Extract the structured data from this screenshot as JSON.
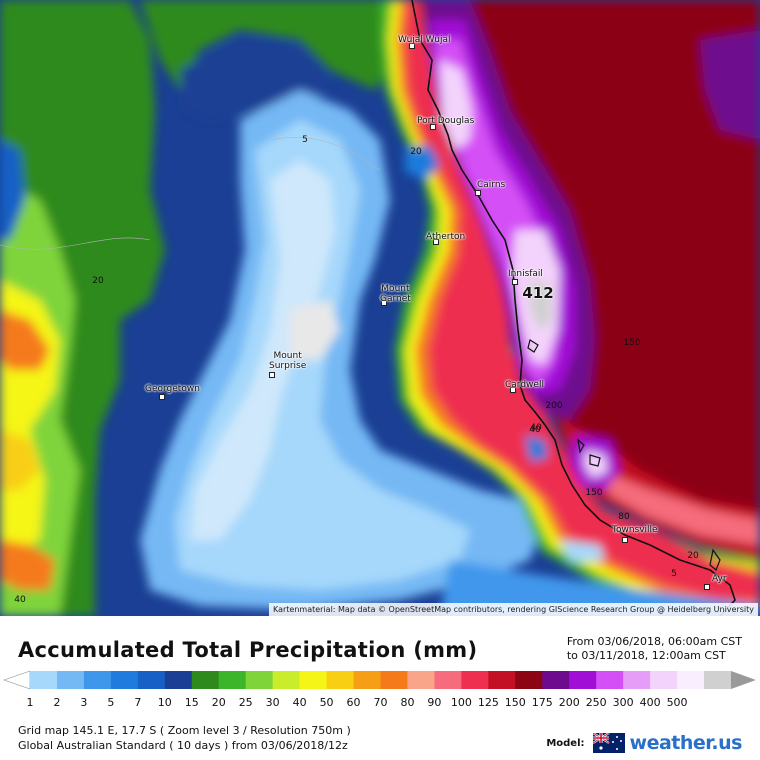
{
  "map": {
    "attribution": "Kartenmaterial: Map data © OpenStreetMap contributors, rendering GIScience Research Group @ Heidelberg University",
    "max_value": "412",
    "places": [
      {
        "name": "Wujal Wujal",
        "label_lines": [
          "Wujal Wujal"
        ]
      },
      {
        "name": "Port Douglas",
        "label_lines": [
          "Port Douglas"
        ]
      },
      {
        "name": "Cairns",
        "label_lines": [
          "Cairns"
        ]
      },
      {
        "name": "Atherton",
        "label_lines": [
          "Atherton"
        ]
      },
      {
        "name": "Innisfail",
        "label_lines": [
          "Innisfail"
        ]
      },
      {
        "name": "Mount Garnet",
        "label_lines": [
          "Mount",
          "Garnet"
        ]
      },
      {
        "name": "Mount Surprise",
        "label_lines": [
          "Mount",
          "Surprise"
        ]
      },
      {
        "name": "Georgetown",
        "label_lines": [
          "Georgetown"
        ]
      },
      {
        "name": "Cardwell",
        "label_lines": [
          "Cardwell"
        ]
      },
      {
        "name": "Townsville",
        "label_lines": [
          "Townsville"
        ]
      },
      {
        "name": "Ayr",
        "label_lines": [
          "Ayr"
        ]
      }
    ],
    "contour_labels": [
      "5",
      "20",
      "20",
      "40",
      "150",
      "200",
      "150",
      "40",
      "80",
      "20",
      "5",
      "40"
    ]
  },
  "legend": {
    "title": "Accumulated Total Precipitation (mm)",
    "period_from": "From 03/06/2018, 06:00am CST",
    "period_to": "to 03/11/2018, 12:00am CST",
    "ticks": [
      "1",
      "2",
      "3",
      "5",
      "7",
      "10",
      "15",
      "20",
      "25",
      "30",
      "40",
      "50",
      "60",
      "70",
      "80",
      "90",
      "100",
      "125",
      "150",
      "175",
      "200",
      "250",
      "300",
      "400",
      "500"
    ],
    "colors": [
      "#a6d8fb",
      "#74b8f4",
      "#3f97ec",
      "#1f7bdd",
      "#1760c6",
      "#1a3f94",
      "#2f8a1e",
      "#3cb52a",
      "#7fd43a",
      "#c9ec2b",
      "#f5f518",
      "#f8cf12",
      "#f5a014",
      "#f57a1a",
      "#f9a58a",
      "#f66c7c",
      "#ee2f50",
      "#c41024",
      "#8c0512",
      "#6e0a8e",
      "#a10fd6",
      "#d44ff5",
      "#e59df8",
      "#f3d3fb",
      "#f9eefd",
      "#d0d0d0"
    ]
  },
  "info": {
    "line1": "Grid map 145.1 E, 17.7 S ( Zoom level 3 / Resolution 750m )",
    "line2": "Global Australian Standard ( 10 days ) from 03/06/2018/12z"
  },
  "branding": {
    "model_label": "Model:",
    "brand": "weather.us"
  }
}
